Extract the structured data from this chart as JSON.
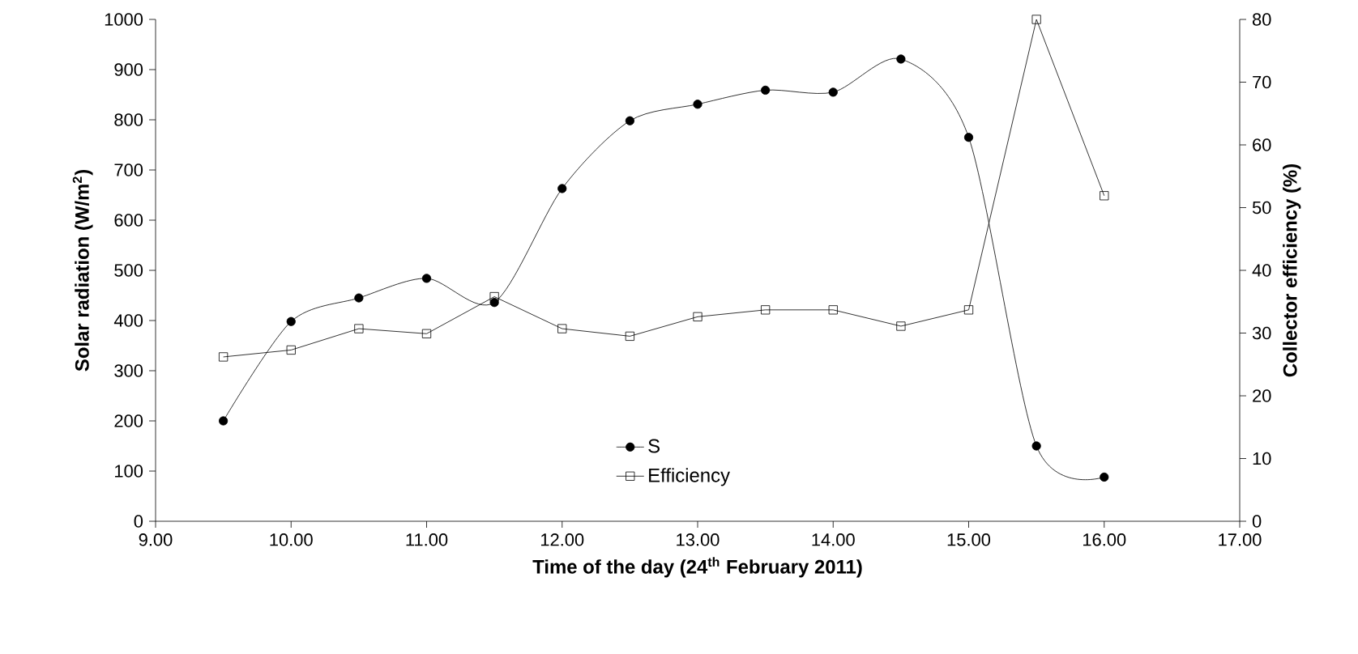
{
  "chart_data": {
    "type": "line",
    "xlabel": "Time of the day (24$^{th}$ February 2011)",
    "ylabel": "Solar radiation (W/m$^{2}$)",
    "y2label": "Collector efficiency (%)",
    "x": [
      9.5,
      10,
      10.5,
      11,
      11.5,
      12,
      12.5,
      13,
      13.5,
      14,
      14.5,
      15,
      15.5,
      16
    ],
    "series": [
      {
        "name": "S",
        "color": "#000000",
        "marker": "circle",
        "values": [
          200,
          398,
          445,
          484,
          436,
          663,
          798,
          831,
          859,
          855,
          921,
          765,
          150,
          88
        ]
      },
      {
        "name": "Efficiency",
        "color": "#000000",
        "marker": "square",
        "axis": "y2",
        "values": [
          26.2,
          27.3,
          30.7,
          29.9,
          35.8,
          30.7,
          29.5,
          32.6,
          33.7,
          33.7,
          31.1,
          33.7,
          80,
          51.9
        ]
      }
    ],
    "xlim": [
      9,
      17
    ],
    "xticks": [
      {
        "value": 9,
        "label": "9.00"
      },
      {
        "value": 10,
        "label": "10.00"
      },
      {
        "value": 11,
        "label": "11.00"
      },
      {
        "value": 12,
        "label": "12.00"
      },
      {
        "value": 13,
        "label": "13.00"
      },
      {
        "value": 14,
        "label": "14.00"
      },
      {
        "value": 15,
        "label": "15.00"
      },
      {
        "value": 16,
        "label": "16.00"
      },
      {
        "value": 17,
        "label": "17.00"
      }
    ],
    "ylim": [
      0,
      1000
    ],
    "yticks": [
      0,
      100,
      200,
      300,
      400,
      500,
      600,
      700,
      800,
      900,
      1000
    ],
    "y2lim": [
      0,
      80
    ],
    "y2ticks": [
      0,
      10,
      20,
      30,
      40,
      50,
      60,
      70,
      80
    ],
    "grid": false,
    "legend": "bottom"
  }
}
